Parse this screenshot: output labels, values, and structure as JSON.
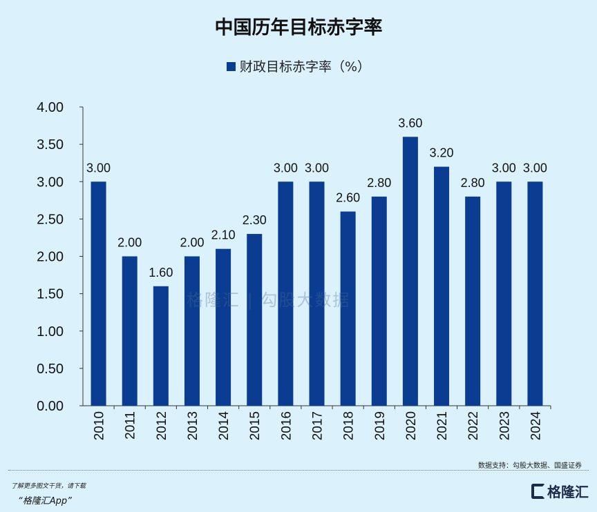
{
  "chart_data": {
    "type": "bar",
    "title": "中国历年目标赤字率",
    "legend": {
      "entries": [
        "财政目标赤字率（%）"
      ],
      "placement": "top"
    },
    "categories": [
      "2010",
      "2011",
      "2012",
      "2013",
      "2014",
      "2015",
      "2016",
      "2017",
      "2018",
      "2019",
      "2020",
      "2021",
      "2022",
      "2023",
      "2024"
    ],
    "series": [
      {
        "name": "财政目标赤字率（%）",
        "values": [
          3.0,
          2.0,
          1.6,
          2.0,
          2.1,
          2.3,
          3.0,
          3.0,
          2.6,
          2.8,
          3.6,
          3.2,
          2.8,
          3.0,
          3.0
        ]
      }
    ],
    "ylim": [
      0,
      4
    ],
    "yticks": [
      "0.00",
      "0.50",
      "1.00",
      "1.50",
      "2.00",
      "2.50",
      "3.00",
      "3.50",
      "4.00"
    ],
    "grid": false,
    "bar_color": "#0a3d91"
  },
  "source": "数据支持：勾股大数据、国盛证券",
  "watermark": "格隆汇 | 勾股大数据",
  "promo": {
    "line1": "了解更多图文干货，请下载",
    "line2": "“格隆汇App”"
  },
  "logo": "格隆汇"
}
